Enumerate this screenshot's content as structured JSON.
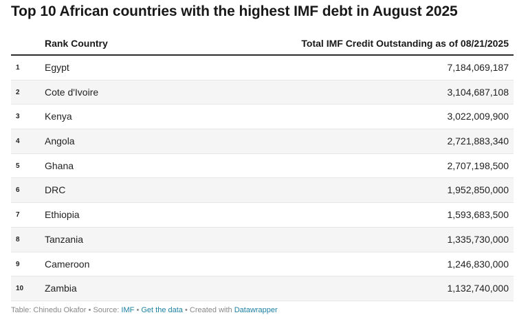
{
  "title": "Top 10 African countries with the highest IMF debt in August 2025",
  "table": {
    "header_left": "Rank Country",
    "header_right": "Total IMF Credit Outstanding as of 08/21/2025"
  },
  "chart_data": {
    "type": "table",
    "title": "Top 10 African countries with the highest IMF debt in August 2025",
    "columns": [
      "Rank",
      "Country",
      "Total IMF Credit Outstanding as of 08/21/2025"
    ],
    "rows": [
      {
        "rank": "1",
        "country": "Egypt",
        "value": "7,184,069,187"
      },
      {
        "rank": "2",
        "country": "Cote d'Ivoire",
        "value": "3,104,687,108"
      },
      {
        "rank": "3",
        "country": "Kenya",
        "value": "3,022,009,900"
      },
      {
        "rank": "4",
        "country": "Angola",
        "value": "2,721,883,340"
      },
      {
        "rank": "5",
        "country": "Ghana",
        "value": "2,707,198,500"
      },
      {
        "rank": "6",
        "country": "DRC",
        "value": "1,952,850,000"
      },
      {
        "rank": "7",
        "country": "Ethiopia",
        "value": "1,593,683,500"
      },
      {
        "rank": "8",
        "country": "Tanzania",
        "value": "1,335,730,000"
      },
      {
        "rank": "9",
        "country": "Cameroon",
        "value": "1,246,830,000"
      },
      {
        "rank": "10",
        "country": "Zambia",
        "value": "1,132,740,000"
      }
    ]
  },
  "footer": {
    "table_credit": "Table: Chinedu Okafor",
    "source_label": "Source:",
    "source_link": "IMF",
    "get_data": "Get the data",
    "created_with": "Created with",
    "tool_link": "Datawrapper",
    "separator": "•"
  },
  "colors": {
    "text": "#181818",
    "link": "#1d81a2",
    "muted": "#888888",
    "row_alt": "#f5f5f5"
  }
}
